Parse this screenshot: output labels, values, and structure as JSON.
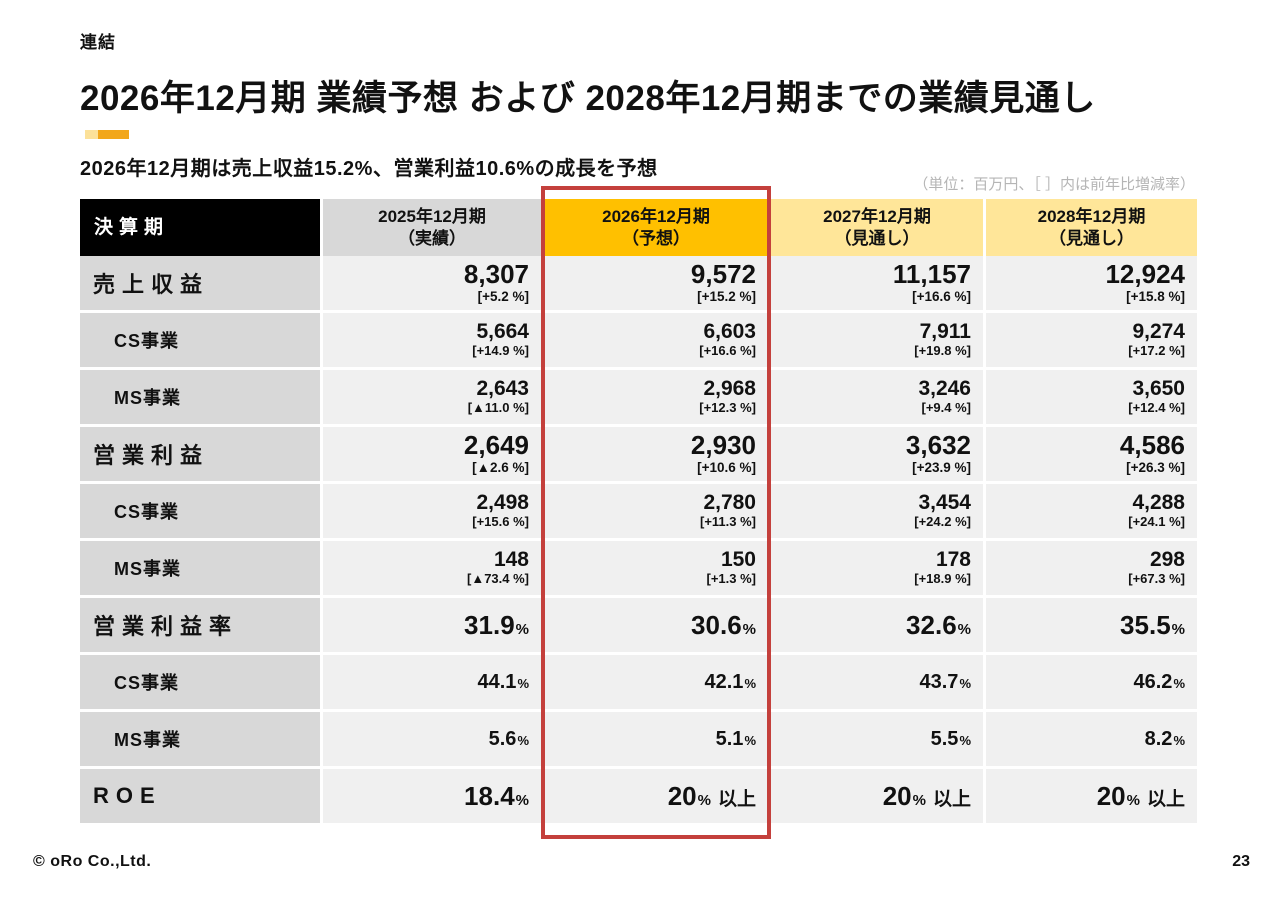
{
  "slide": {
    "tag": "連結",
    "title": "2026年12月期 業績予想 および 2028年12月期までの業績見通し",
    "subtitle": "2026年12月期は売上収益15.2%、営業利益10.6%の成長を予想",
    "unit_note": "（単位：百万円、［ ］内は前年比増減率）",
    "footer": {
      "copyright": "©",
      "company": "oRo Co.,Ltd.",
      "page_number": "23"
    }
  },
  "colors": {
    "header_black": "#000000",
    "header_gray": "#d8d8d8",
    "header_gold": "#ffc000",
    "header_light_gold": "#ffe699",
    "label_column_gray": "#d8d8d8",
    "data_cell_gray": "#f0f0f0",
    "highlight_red": "#c4403c",
    "unit_note_gray": "#b5b5b5",
    "accent_bar_light": "#fce199",
    "accent_bar_dark": "#f2a71b"
  },
  "table": {
    "columns": [
      {
        "line1": "決算期",
        "line2": ""
      },
      {
        "line1": "2025年12月期",
        "line2": "（実績）"
      },
      {
        "line1": "2026年12月期",
        "line2": "（予想）"
      },
      {
        "line1": "2027年12月期",
        "line2": "（見通し）"
      },
      {
        "line1": "2028年12月期",
        "line2": "（見通し）"
      }
    ],
    "rows": [
      {
        "label": "売上収益",
        "level": "main",
        "cells": [
          {
            "value": "8,307",
            "yoy": "[+5.2 %]"
          },
          {
            "value": "9,572",
            "yoy": "[+15.2 %]"
          },
          {
            "value": "11,157",
            "yoy": "[+16.6 %]"
          },
          {
            "value": "12,924",
            "yoy": "[+15.8 %]"
          }
        ]
      },
      {
        "label": "CS事業",
        "level": "sub",
        "cells": [
          {
            "value": "5,664",
            "yoy": "[+14.9 %]"
          },
          {
            "value": "6,603",
            "yoy": "[+16.6 %]"
          },
          {
            "value": "7,911",
            "yoy": "[+19.8 %]"
          },
          {
            "value": "9,274",
            "yoy": "[+17.2 %]"
          }
        ]
      },
      {
        "label": "MS事業",
        "level": "sub",
        "cells": [
          {
            "value": "2,643",
            "yoy": "[▲11.0 %]"
          },
          {
            "value": "2,968",
            "yoy": "[+12.3 %]"
          },
          {
            "value": "3,246",
            "yoy": "[+9.4 %]"
          },
          {
            "value": "3,650",
            "yoy": "[+12.4 %]"
          }
        ]
      },
      {
        "label": "営業利益",
        "level": "main",
        "cells": [
          {
            "value": "2,649",
            "yoy": "[▲2.6 %]"
          },
          {
            "value": "2,930",
            "yoy": "[+10.6 %]"
          },
          {
            "value": "3,632",
            "yoy": "[+23.9 %]"
          },
          {
            "value": "4,586",
            "yoy": "[+26.3 %]"
          }
        ]
      },
      {
        "label": "CS事業",
        "level": "sub",
        "cells": [
          {
            "value": "2,498",
            "yoy": "[+15.6 %]"
          },
          {
            "value": "2,780",
            "yoy": "[+11.3 %]"
          },
          {
            "value": "3,454",
            "yoy": "[+24.2 %]"
          },
          {
            "value": "4,288",
            "yoy": "[+24.1 %]"
          }
        ]
      },
      {
        "label": "MS事業",
        "level": "sub",
        "cells": [
          {
            "value": "148",
            "yoy": "[▲73.4 %]"
          },
          {
            "value": "150",
            "yoy": "[+1.3 %]"
          },
          {
            "value": "178",
            "yoy": "[+18.9 %]"
          },
          {
            "value": "298",
            "yoy": "[+67.3 %]"
          }
        ]
      },
      {
        "label": "営業利益率",
        "level": "main",
        "cells": [
          {
            "value": "31.9",
            "unit": "%"
          },
          {
            "value": "30.6",
            "unit": "%"
          },
          {
            "value": "32.6",
            "unit": "%"
          },
          {
            "value": "35.5",
            "unit": "%"
          }
        ]
      },
      {
        "label": "CS事業",
        "level": "sub",
        "cells": [
          {
            "value": "44.1",
            "unit": "%"
          },
          {
            "value": "42.1",
            "unit": "%"
          },
          {
            "value": "43.7",
            "unit": "%"
          },
          {
            "value": "46.2",
            "unit": "%"
          }
        ]
      },
      {
        "label": "MS事業",
        "level": "sub",
        "cells": [
          {
            "value": "5.6",
            "unit": "%"
          },
          {
            "value": "5.1",
            "unit": "%"
          },
          {
            "value": "5.5",
            "unit": "%"
          },
          {
            "value": "8.2",
            "unit": "%"
          }
        ]
      },
      {
        "label": "ROE",
        "level": "main",
        "cells": [
          {
            "value": "18.4",
            "unit": "%"
          },
          {
            "value": "20",
            "unit": "%",
            "suffix": "以上"
          },
          {
            "value": "20",
            "unit": "%",
            "suffix": "以上"
          },
          {
            "value": "20",
            "unit": "%",
            "suffix": "以上"
          }
        ]
      }
    ]
  }
}
